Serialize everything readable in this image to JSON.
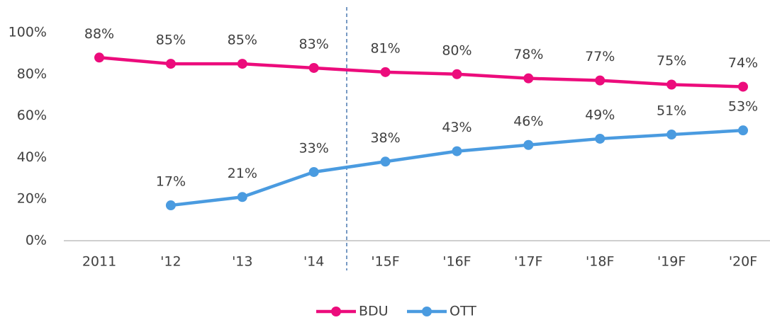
{
  "chart_data": {
    "type": "line",
    "categories": [
      "2011",
      "'12",
      "'13",
      "'14",
      "'15F",
      "'16F",
      "'17F",
      "'18F",
      "'19F",
      "'20F"
    ],
    "series": [
      {
        "name": "BDU",
        "color": "#ec0c7c",
        "values": [
          88,
          85,
          85,
          83,
          81,
          80,
          78,
          77,
          75,
          74
        ],
        "value_labels": [
          "88%",
          "85%",
          "85%",
          "83%",
          "81%",
          "80%",
          "78%",
          "77%",
          "75%",
          "74%"
        ]
      },
      {
        "name": "OTT",
        "color": "#4a9be0",
        "values": [
          null,
          17,
          21,
          33,
          38,
          43,
          46,
          49,
          51,
          53
        ],
        "value_labels": [
          null,
          "17%",
          "21%",
          "33%",
          "38%",
          "43%",
          "46%",
          "49%",
          "51%",
          "53%"
        ]
      }
    ],
    "ylim": [
      0,
      100
    ],
    "yticks": [
      {
        "value": 0,
        "label": "0%"
      },
      {
        "value": 20,
        "label": "20%"
      },
      {
        "value": 40,
        "label": "40%"
      },
      {
        "value": 60,
        "label": "60%"
      },
      {
        "value": 80,
        "label": "80%"
      },
      {
        "value": 100,
        "label": "100%"
      }
    ],
    "grid": false,
    "legend": "bottom"
  }
}
